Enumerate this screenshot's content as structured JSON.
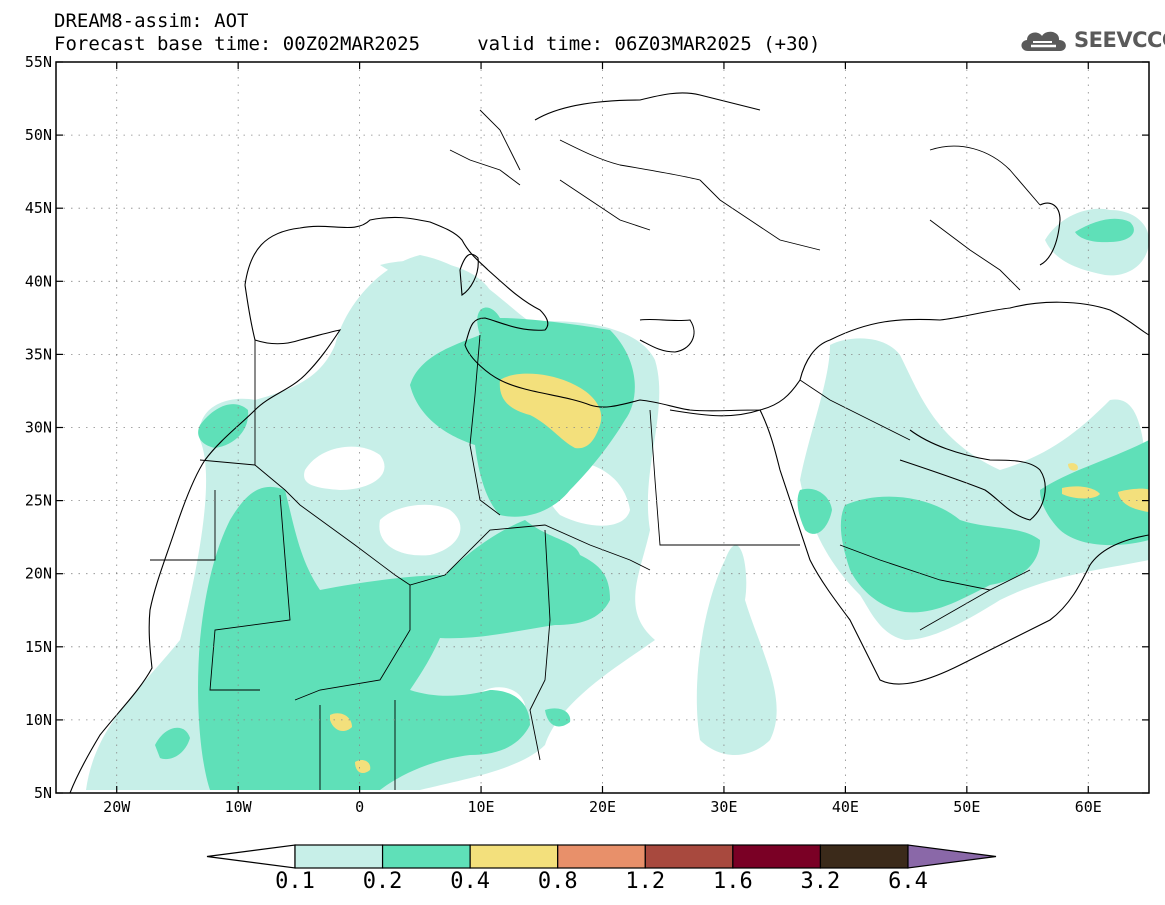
{
  "title": {
    "line1": "DREAM8-assim: AOT",
    "line2": "Forecast base time: 00Z02MAR2025     valid time: 06Z03MAR2025 (+30)"
  },
  "logo": {
    "text": "SEEVCCC",
    "icon": "cloud-icon"
  },
  "map": {
    "lon_range": [
      -25,
      65
    ],
    "lat_range": [
      5,
      55
    ],
    "grid": "dotted",
    "lat_ticks": [
      "5N",
      "10N",
      "15N",
      "20N",
      "25N",
      "30N",
      "35N",
      "40N",
      "45N",
      "50N",
      "55N"
    ],
    "lon_ticks": [
      "20W",
      "10W",
      "0",
      "10E",
      "20E",
      "30E",
      "40E",
      "50E",
      "60E"
    ]
  },
  "colorbar": {
    "labels": [
      "0.1",
      "0.2",
      "0.4",
      "0.8",
      "1.2",
      "1.6",
      "3.2",
      "6.4"
    ],
    "colors": [
      "#ffffff",
      "#c7efe8",
      "#5fe0b8",
      "#f3e07c",
      "#e8906a",
      "#a8493e",
      "#7a0025",
      "#3b2a1a",
      "#8a68a8"
    ]
  }
}
